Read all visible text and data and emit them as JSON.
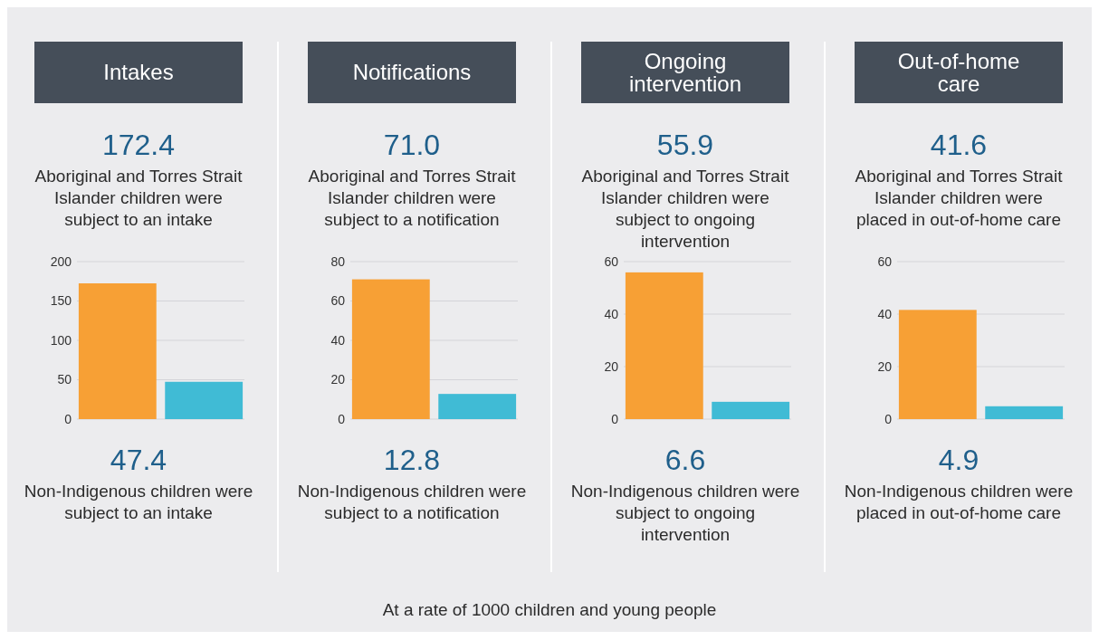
{
  "chart_data": [
    {
      "type": "bar",
      "title": "Intakes",
      "categories": [
        null,
        null
      ],
      "values": [
        172.4,
        47.4
      ],
      "colors": [
        "#f7a035",
        "#40bbd5"
      ],
      "ylim": [
        0,
        200
      ],
      "yticks": [
        0,
        50,
        100,
        150,
        200
      ],
      "grid": "y",
      "tick_labels": "y",
      "annotations": [
        "172.4",
        "Aboriginal and Torres Strait Islander children were subject to an intake",
        "47.4",
        "Non-Indigenous children were subject to an intake"
      ]
    },
    {
      "type": "bar",
      "title": "Notifications",
      "categories": [
        null,
        null
      ],
      "values": [
        71.0,
        12.8
      ],
      "colors": [
        "#f7a035",
        "#40bbd5"
      ],
      "ylim": [
        0,
        80
      ],
      "yticks": [
        0,
        20,
        40,
        60,
        80
      ],
      "grid": "y",
      "tick_labels": "y",
      "annotations": [
        "71.0",
        "Aboriginal and Torres Strait Islander children were subject to a notification",
        "12.8",
        "Non-Indigenous children were subject to a notification"
      ]
    },
    {
      "type": "bar",
      "title": "Ongoing intervention",
      "categories": [
        null,
        null
      ],
      "values": [
        55.9,
        6.6
      ],
      "colors": [
        "#f7a035",
        "#40bbd5"
      ],
      "ylim": [
        0,
        60
      ],
      "yticks": [
        0,
        20,
        40,
        60
      ],
      "grid": "y",
      "tick_labels": "y",
      "annotations": [
        "55.9",
        "Aboriginal and Torres Strait Islander children were subject to ongoing intervention",
        "6.6",
        "Non-Indigenous children were subject to ongoing intervention"
      ]
    },
    {
      "type": "bar",
      "title": "Out-of-home care",
      "categories": [
        null,
        null
      ],
      "values": [
        41.6,
        4.9
      ],
      "colors": [
        "#f7a035",
        "#40bbd5"
      ],
      "ylim": [
        0,
        60
      ],
      "yticks": [
        0,
        20,
        40,
        60
      ],
      "grid": "y",
      "tick_labels": "y",
      "annotations": [
        "41.6",
        "Aboriginal and Torres Strait Islander children were placed in out-of-home care",
        "4.9",
        "Non-Indigenous children were placed in out-of-home care",
        "At a rate of 1000 children and young people"
      ]
    }
  ]
}
